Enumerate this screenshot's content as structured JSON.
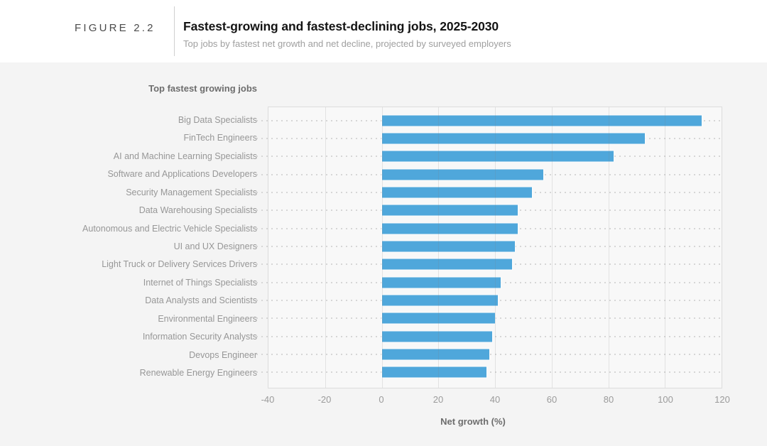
{
  "header": {
    "figure_label": "FIGURE 2.2",
    "title": "Fastest-growing and fastest-declining jobs, 2025-2030",
    "subtitle": "Top jobs by fastest net growth and net decline, projected by surveyed employers"
  },
  "panel": {
    "section_header": "Top fastest growing jobs"
  },
  "chart_data": {
    "type": "bar",
    "orientation": "horizontal",
    "title": "Top fastest growing jobs",
    "categories": [
      "Big Data Specialists",
      "FinTech Engineers",
      "AI and Machine Learning Specialists",
      "Software and Applications Developers",
      "Security Management Specialists",
      "Data Warehousing Specialists",
      "Autonomous and Electric Vehicle Specialists",
      "UI and UX Designers",
      "Light Truck or Delivery Services Drivers",
      "Internet of Things Specialists",
      "Data Analysts and Scientists",
      "Environmental Engineers",
      "Information Security Analysts",
      "Devops Engineer",
      "Renewable Energy Engineers"
    ],
    "values": [
      113,
      93,
      82,
      57,
      53,
      48,
      48,
      47,
      46,
      42,
      41,
      40,
      39,
      38,
      37
    ],
    "unit": "%",
    "xlabel": "Net growth (%)",
    "xlim": [
      -40,
      120
    ],
    "xticks": [
      -40,
      -20,
      0,
      20,
      40,
      60,
      80,
      100,
      120
    ],
    "grid": true,
    "legend": "none",
    "bar_color": "#4FA7DB",
    "plot_background": "#f8f8f8",
    "panel_background": "#f4f4f4"
  }
}
